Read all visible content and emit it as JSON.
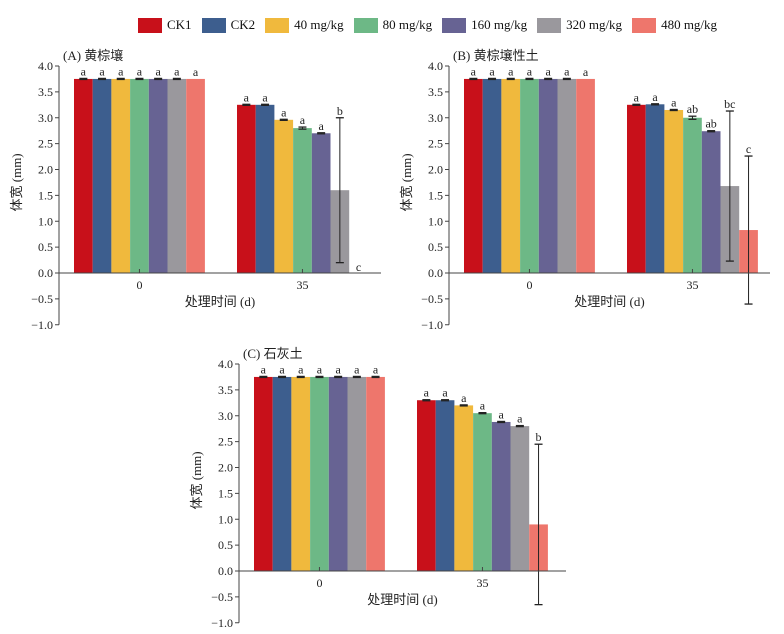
{
  "chart_data": {
    "type": "bar",
    "legend": {
      "placement": "top",
      "entries": [
        "CK1",
        "CK2",
        "40 mg/kg",
        "80 mg/kg",
        "160 mg/kg",
        "320 mg/kg",
        "480 mg/kg"
      ]
    },
    "colors": [
      "#c8101a",
      "#3d5e8e",
      "#f0b93d",
      "#6db886",
      "#676393",
      "#9a989d",
      "#ee766c"
    ],
    "panels": [
      {
        "title": "(A) 黄棕壤",
        "xlabel": "处理时间 (d)",
        "ylabel": "体宽 (mm)",
        "categories": [
          "0",
          "35"
        ],
        "ylim": [
          -1.0,
          4.0
        ],
        "yticks": [
          "4.0",
          "3.5",
          "3.0",
          "2.5",
          "2.0",
          "1.5",
          "1.0",
          "0.5",
          "0.0",
          "−0.5",
          "−1.0"
        ],
        "series": [
          {
            "name": "CK1",
            "values": [
              3.75,
              3.25
            ],
            "errors": [
              0.01,
              0.01
            ],
            "letters": [
              "a",
              "a"
            ]
          },
          {
            "name": "CK2",
            "values": [
              3.75,
              3.25
            ],
            "errors": [
              0.01,
              0.01
            ],
            "letters": [
              "a",
              "a"
            ]
          },
          {
            "name": "40 mg/kg",
            "values": [
              3.75,
              2.96
            ],
            "errors": [
              0.01,
              0.01
            ],
            "letters": [
              "a",
              "a"
            ]
          },
          {
            "name": "80 mg/kg",
            "values": [
              3.75,
              2.8
            ],
            "errors": [
              0.01,
              0.02
            ],
            "letters": [
              "a",
              "a"
            ]
          },
          {
            "name": "160 mg/kg",
            "values": [
              3.75,
              2.7
            ],
            "errors": [
              0.01,
              0.01
            ],
            "letters": [
              "a",
              "a"
            ]
          },
          {
            "name": "320 mg/kg",
            "values": [
              3.75,
              1.6
            ],
            "errors": [
              0.01,
              1.4
            ],
            "letters": [
              "a",
              "b"
            ]
          },
          {
            "name": "480 mg/kg",
            "values": [
              3.75,
              0.0
            ],
            "errors": [
              0.0,
              0.0
            ],
            "letters": [
              "a",
              "c"
            ]
          }
        ]
      },
      {
        "title": "(B) 黄棕壤性土",
        "xlabel": "处理时间 (d)",
        "ylabel": "体宽 (mm)",
        "categories": [
          "0",
          "35"
        ],
        "ylim": [
          -1.0,
          4.0
        ],
        "yticks": [
          "4.0",
          "3.5",
          "3.0",
          "2.5",
          "2.0",
          "1.5",
          "1.0",
          "0.5",
          "0.0",
          "−0.5",
          "−1.0"
        ],
        "series": [
          {
            "name": "CK1",
            "values": [
              3.75,
              3.25
            ],
            "errors": [
              0.01,
              0.01
            ],
            "letters": [
              "a",
              "a"
            ]
          },
          {
            "name": "CK2",
            "values": [
              3.75,
              3.26
            ],
            "errors": [
              0.01,
              0.01
            ],
            "letters": [
              "a",
              "a"
            ]
          },
          {
            "name": "40 mg/kg",
            "values": [
              3.75,
              3.15
            ],
            "errors": [
              0.01,
              0.01
            ],
            "letters": [
              "a",
              "a"
            ]
          },
          {
            "name": "80 mg/kg",
            "values": [
              3.75,
              3.0
            ],
            "errors": [
              0.01,
              0.03
            ],
            "letters": [
              "a",
              "ab"
            ]
          },
          {
            "name": "160 mg/kg",
            "values": [
              3.75,
              2.74
            ],
            "errors": [
              0.01,
              0.01
            ],
            "letters": [
              "a",
              "ab"
            ]
          },
          {
            "name": "320 mg/kg",
            "values": [
              3.75,
              1.68
            ],
            "errors": [
              0.01,
              1.45
            ],
            "letters": [
              "a",
              "bc"
            ]
          },
          {
            "name": "480 mg/kg",
            "values": [
              3.75,
              0.83
            ],
            "errors": [
              0.0,
              1.43
            ],
            "letters": [
              "a",
              "c"
            ]
          }
        ]
      },
      {
        "title": "(C) 石灰土",
        "xlabel": "处理时间 (d)",
        "ylabel": "体宽 (mm)",
        "categories": [
          "0",
          "35"
        ],
        "ylim": [
          -1.0,
          4.0
        ],
        "yticks": [
          "4.0",
          "3.5",
          "3.0",
          "2.5",
          "2.0",
          "1.5",
          "1.0",
          "0.5",
          "0.0",
          "−0.5",
          "−1.0"
        ],
        "series": [
          {
            "name": "CK1",
            "values": [
              3.75,
              3.3
            ],
            "errors": [
              0.01,
              0.01
            ],
            "letters": [
              "a",
              "a"
            ]
          },
          {
            "name": "CK2",
            "values": [
              3.75,
              3.3
            ],
            "errors": [
              0.01,
              0.01
            ],
            "letters": [
              "a",
              "a"
            ]
          },
          {
            "name": "40 mg/kg",
            "values": [
              3.75,
              3.2
            ],
            "errors": [
              0.01,
              0.01
            ],
            "letters": [
              "a",
              "a"
            ]
          },
          {
            "name": "80 mg/kg",
            "values": [
              3.75,
              3.05
            ],
            "errors": [
              0.01,
              0.01
            ],
            "letters": [
              "a",
              "a"
            ]
          },
          {
            "name": "160 mg/kg",
            "values": [
              3.75,
              2.88
            ],
            "errors": [
              0.01,
              0.01
            ],
            "letters": [
              "a",
              "a"
            ]
          },
          {
            "name": "320 mg/kg",
            "values": [
              3.75,
              2.8
            ],
            "errors": [
              0.01,
              0.01
            ],
            "letters": [
              "a",
              "a"
            ]
          },
          {
            "name": "480 mg/kg",
            "values": [
              3.75,
              0.9
            ],
            "errors": [
              0.01,
              1.55
            ],
            "letters": [
              "a",
              "b"
            ]
          }
        ]
      }
    ]
  }
}
